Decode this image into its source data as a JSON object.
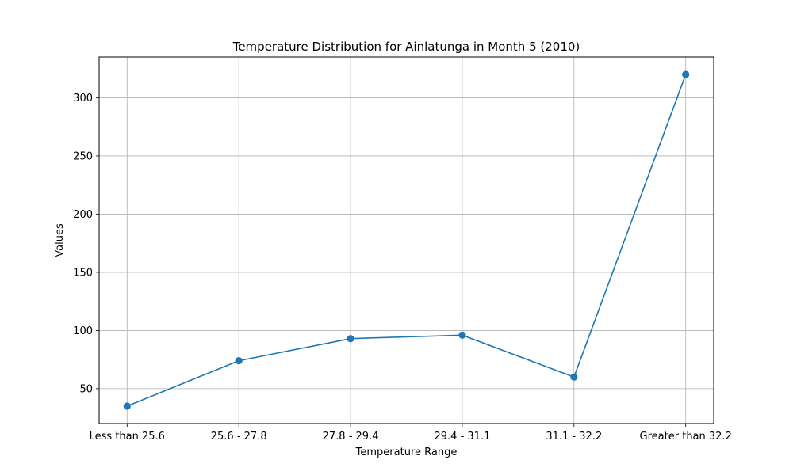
{
  "chart_data": {
    "type": "line",
    "title": "Temperature Distribution for Ainlatunga in Month 5 (2010)",
    "xlabel": "Temperature Range",
    "ylabel": "Values",
    "categories": [
      "Less than 25.6",
      "25.6 - 27.8",
      "27.8 - 29.4",
      "29.4 - 31.1",
      "31.1 - 32.2",
      "Greater than 32.2"
    ],
    "series": [
      {
        "values": [
          35,
          74,
          93,
          96,
          60,
          320
        ],
        "color": "#1f77b4",
        "marker": "circle"
      }
    ],
    "ylim": [
      20,
      335
    ],
    "yticks": [
      50,
      100,
      150,
      200,
      250,
      300
    ],
    "ytick_labels": [
      "50",
      "100",
      "150",
      "200",
      "250",
      "300"
    ],
    "grid": true,
    "legend": false
  }
}
